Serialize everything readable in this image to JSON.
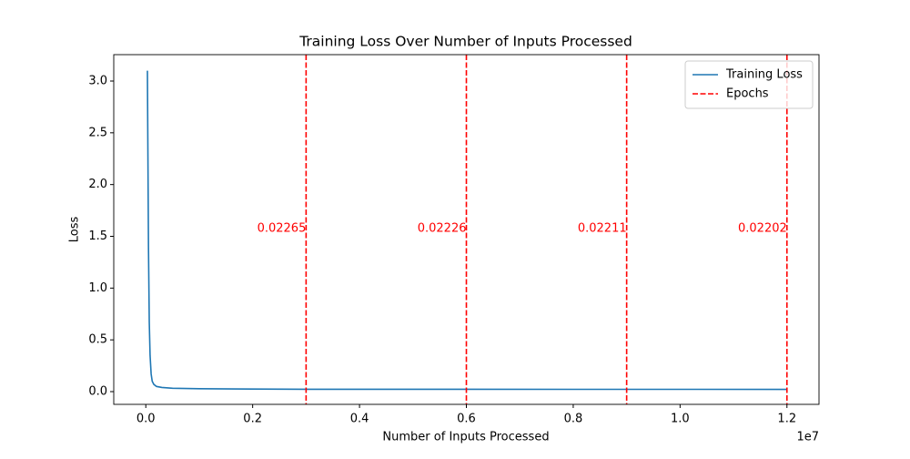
{
  "chart_data": {
    "type": "line",
    "title": "Training Loss Over Number of Inputs Processed",
    "xlabel": "Number of Inputs Processed",
    "ylabel": "Loss",
    "x_offset_label": "1e7",
    "xlim": [
      -600000,
      12600000
    ],
    "ylim": [
      -0.123,
      3.255
    ],
    "xticks": [
      {
        "value": 0,
        "label": "0.0"
      },
      {
        "value": 2000000,
        "label": "0.2"
      },
      {
        "value": 4000000,
        "label": "0.4"
      },
      {
        "value": 6000000,
        "label": "0.6"
      },
      {
        "value": 8000000,
        "label": "0.8"
      },
      {
        "value": 10000000,
        "label": "1.0"
      },
      {
        "value": 12000000,
        "label": "1.2"
      }
    ],
    "yticks": [
      {
        "value": 0,
        "label": "0.0"
      },
      0.5,
      {
        "value": 1,
        "label": "1.0"
      },
      1.5,
      {
        "value": 2,
        "label": "2.0"
      },
      2.5,
      {
        "value": 3,
        "label": "3.0"
      }
    ],
    "legend": "upper right",
    "series": [
      {
        "name": "Training Loss",
        "color": "#1f77b4",
        "x": [
          30000,
          50000,
          65000,
          80000,
          100000,
          120000,
          150000,
          200000,
          300000,
          500000,
          1000000,
          2000000,
          3000000,
          6000000,
          9000000,
          12000000
        ],
        "values": [
          3.1,
          1.4,
          0.67,
          0.35,
          0.17,
          0.1,
          0.07,
          0.05,
          0.04,
          0.033,
          0.028,
          0.025,
          0.0227,
          0.0223,
          0.0221,
          0.022
        ]
      }
    ],
    "epochs": {
      "name": "Epochs",
      "color": "#ff0000",
      "x": [
        3000000,
        6000000,
        9000000,
        12000000
      ],
      "labels": [
        "0.02265",
        "0.02226",
        "0.02211",
        "0.02202"
      ]
    }
  }
}
